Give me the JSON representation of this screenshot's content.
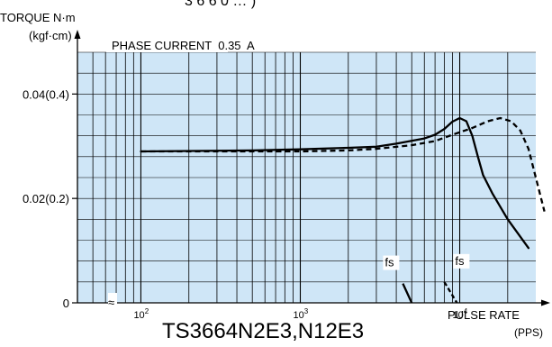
{
  "chart_data": {
    "type": "line",
    "title": "TS3664N2E3,N12E3",
    "header_fragment": "3 6 6 0  … )",
    "subtitle": "PHASE CURRENT  0.35  A",
    "ylabel": "TORQUE N·m",
    "ylabel_unit": "(kgf·cm)",
    "xlabel": "PULSE RATE",
    "xlabel_unit": "(PPS)",
    "xscale": "log",
    "xlim": [
      40,
      30000
    ],
    "ylim": [
      0,
      0.048
    ],
    "y_ticks": [
      {
        "value": 0,
        "label": "0"
      },
      {
        "value": 0.02,
        "label": "0.02(0.2)"
      },
      {
        "value": 0.04,
        "label": "0.04(0.4)"
      }
    ],
    "x_ticks": [
      {
        "value": 100,
        "base": "10",
        "exp": "2"
      },
      {
        "value": 1000,
        "base": "10",
        "exp": "3"
      },
      {
        "value": 10000,
        "base": "10",
        "exp": "4"
      }
    ],
    "axis_break_mark": "≈",
    "grid": true,
    "background_color": "#cfe6f7",
    "series": [
      {
        "style": "solid",
        "points": [
          [
            100,
            0.029
          ],
          [
            500,
            0.0292
          ],
          [
            1000,
            0.0294
          ],
          [
            2000,
            0.0297
          ],
          [
            3000,
            0.0299
          ],
          [
            4000,
            0.0305
          ],
          [
            6000,
            0.0315
          ],
          [
            7000,
            0.0322
          ],
          [
            8000,
            0.0333
          ],
          [
            9000,
            0.0347
          ],
          [
            10000,
            0.0354
          ],
          [
            11000,
            0.0348
          ],
          [
            12000,
            0.032
          ],
          [
            13000,
            0.028
          ],
          [
            14000,
            0.0245
          ],
          [
            16000,
            0.021
          ],
          [
            20000,
            0.016
          ],
          [
            27000,
            0.0105
          ]
        ]
      },
      {
        "style": "dashed",
        "points": [
          [
            100,
            0.029
          ],
          [
            500,
            0.029
          ],
          [
            1000,
            0.029
          ],
          [
            2000,
            0.0292
          ],
          [
            3000,
            0.0295
          ],
          [
            5000,
            0.0302
          ],
          [
            7000,
            0.031
          ],
          [
            9000,
            0.0322
          ],
          [
            12000,
            0.0335
          ],
          [
            15000,
            0.0348
          ],
          [
            18000,
            0.0354
          ],
          [
            21000,
            0.0348
          ],
          [
            24000,
            0.033
          ],
          [
            27000,
            0.0295
          ],
          [
            30000,
            0.024
          ],
          [
            34000,
            0.0175
          ]
        ]
      }
    ],
    "start_curves": [
      {
        "label": "fs",
        "style": "solid",
        "points": [
          [
            4400,
            0.0037
          ],
          [
            5000,
            0
          ]
        ]
      },
      {
        "label": "fs",
        "style": "dashed",
        "points": [
          [
            8000,
            0.004
          ],
          [
            9600,
            0
          ]
        ]
      }
    ]
  }
}
